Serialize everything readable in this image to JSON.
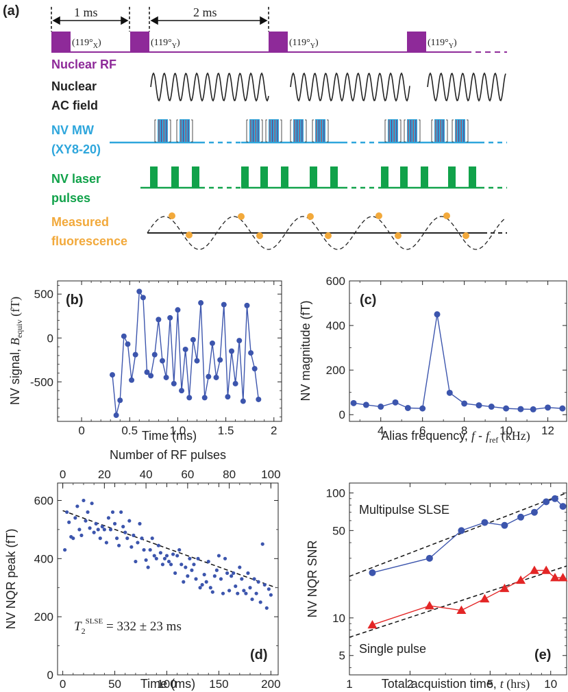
{
  "colors": {
    "rf": "#8e2a99",
    "ac": "#222222",
    "mw": "#2ea6dc",
    "mw_stripe_red": "#d33a3a",
    "laser": "#11a24a",
    "fluor": "#f2a93b",
    "data_blue": "#3c55ad",
    "data_red": "#e32626",
    "fit": "#111111"
  },
  "panel_a": {
    "label": "(a)",
    "dim_1": "1 ms",
    "dim_2": "2 ms",
    "pulse_labels": [
      "(119°",
      "(119°",
      "(119°",
      "(119°"
    ],
    "pulse_subs": [
      "X",
      "Y",
      "Y",
      "Y"
    ],
    "pulse_close": ")",
    "rows": {
      "rf": "Nuclear RF",
      "ac_1": "Nuclear",
      "ac_2": "AC field",
      "mw_1": "NV MW",
      "mw_2": "(XY8-20)",
      "laser_1": "NV laser",
      "laser_2": "pulses",
      "fl_1": "Measured",
      "fl_2": "fluorescence"
    }
  },
  "chart_data": [
    {
      "id": "b",
      "type": "line",
      "panel_label": "(b)",
      "title": "",
      "xlabel": "Time (ms)",
      "ylabel_main": "NV signal, ",
      "ylabel_sym": "B",
      "ylabel_sub": "equiv",
      "ylabel_unit": " (fT)",
      "xlim": [
        -0.25,
        2.08
      ],
      "ylim": [
        -950,
        650
      ],
      "xticks": [
        0,
        0.5,
        1,
        1.5,
        2
      ],
      "xtick_labels": [
        "0",
        "0.5",
        "1.0",
        "1.5",
        "2"
      ],
      "yticks": [
        -500,
        0,
        500
      ],
      "ytick_labels": [
        "-500",
        "0",
        "500"
      ],
      "x": [
        0.32,
        0.36,
        0.4,
        0.44,
        0.48,
        0.52,
        0.56,
        0.6,
        0.64,
        0.68,
        0.72,
        0.76,
        0.8,
        0.84,
        0.88,
        0.92,
        0.96,
        1.0,
        1.04,
        1.08,
        1.12,
        1.16,
        1.2,
        1.24,
        1.28,
        1.32,
        1.36,
        1.4,
        1.44,
        1.48,
        1.52,
        1.56,
        1.6,
        1.64,
        1.68,
        1.72,
        1.76,
        1.8,
        1.84
      ],
      "y": [
        -420,
        -880,
        -710,
        20,
        -70,
        -480,
        -190,
        530,
        460,
        -390,
        -430,
        -190,
        210,
        -260,
        -450,
        230,
        -520,
        320,
        -600,
        -130,
        -680,
        -20,
        -260,
        400,
        -680,
        -440,
        -60,
        -450,
        -250,
        380,
        -670,
        -150,
        -520,
        -30,
        -720,
        370,
        -170,
        -350,
        -700
      ],
      "color": "#3c55ad"
    },
    {
      "id": "c",
      "type": "line",
      "panel_label": "(c)",
      "title": "",
      "xlabel_main": "Alias frequency, ",
      "xlabel_sym_f": "f",
      "xlabel_dash": " - ",
      "xlabel_sym_fref": "f",
      "xlabel_sub": "ref",
      "xlabel_unit": " (kHz)",
      "ylabel": "NV magnitude (fT)",
      "xlim": [
        2.5,
        12.9
      ],
      "ylim": [
        -30,
        600
      ],
      "xticks": [
        4,
        6,
        8,
        10,
        12
      ],
      "xtick_labels": [
        "4",
        "6",
        "8",
        "10",
        "12"
      ],
      "yticks": [
        0,
        200,
        400,
        600
      ],
      "ytick_labels": [
        "0",
        "200",
        "400",
        "600"
      ],
      "x": [
        2.7,
        3.3,
        4.0,
        4.7,
        5.3,
        6.0,
        6.7,
        7.3,
        8.0,
        8.7,
        9.3,
        10.0,
        10.7,
        11.3,
        12.0,
        12.7
      ],
      "y": [
        52,
        44,
        36,
        55,
        30,
        28,
        450,
        98,
        50,
        42,
        36,
        28,
        25,
        24,
        32,
        28
      ],
      "color": "#3c55ad"
    },
    {
      "id": "d",
      "type": "scatter",
      "panel_label": "(d)",
      "title": "",
      "xlabel": "Time (ms)",
      "ylabel": "NV NQR peak (fT)",
      "top_xlabel": "Number of RF pulses",
      "xlim": [
        -5,
        207
      ],
      "ylim": [
        0,
        660
      ],
      "xticks": [
        0,
        50,
        100,
        150,
        200
      ],
      "xtick_labels": [
        "0",
        "50",
        "100",
        "150",
        "200"
      ],
      "top_xticks": [
        0,
        20,
        40,
        60,
        80,
        100
      ],
      "top_xtick_labels": [
        "0",
        "20",
        "40",
        "60",
        "80",
        "100"
      ],
      "yticks": [
        0,
        200,
        400,
        600
      ],
      "ytick_labels": [
        "0",
        "200",
        "400",
        "600"
      ],
      "fit_sym": "T",
      "fit_sub": "2",
      "fit_sup": "SLSE",
      "fit_value": " = 332 ± 23 ms",
      "fit_x": [
        0,
        205
      ],
      "fit_y": [
        565,
        300
      ],
      "x": [
        2,
        4,
        6,
        8,
        10,
        12,
        14,
        16,
        18,
        20,
        22,
        24,
        26,
        28,
        30,
        32,
        34,
        36,
        38,
        40,
        42,
        44,
        46,
        48,
        50,
        52,
        54,
        56,
        58,
        60,
        62,
        64,
        66,
        68,
        70,
        72,
        74,
        76,
        78,
        80,
        82,
        84,
        86,
        88,
        90,
        92,
        94,
        96,
        98,
        100,
        102,
        104,
        106,
        108,
        110,
        112,
        114,
        116,
        118,
        120,
        122,
        124,
        126,
        128,
        130,
        132,
        134,
        136,
        138,
        140,
        142,
        144,
        146,
        148,
        150,
        152,
        154,
        156,
        158,
        160,
        162,
        164,
        166,
        168,
        170,
        172,
        174,
        176,
        178,
        180,
        182,
        184,
        186,
        188,
        190,
        192,
        194,
        196,
        198,
        200
      ],
      "y": [
        430,
        560,
        525,
        475,
        470,
        540,
        580,
        500,
        480,
        600,
        530,
        560,
        505,
        590,
        490,
        520,
        500,
        470,
        510,
        500,
        455,
        540,
        500,
        560,
        520,
        470,
        445,
        560,
        510,
        490,
        470,
        530,
        440,
        480,
        390,
        455,
        520,
        470,
        430,
        395,
        370,
        430,
        470,
        410,
        400,
        445,
        420,
        380,
        400,
        410,
        390,
        380,
        415,
        350,
        410,
        430,
        380,
        320,
        370,
        340,
        400,
        360,
        380,
        330,
        400,
        300,
        310,
        345,
        320,
        390,
        300,
        285,
        340,
        360,
        410,
        330,
        280,
        400,
        350,
        290,
        340,
        350,
        305,
        280,
        370,
        330,
        290,
        280,
        350,
        300,
        260,
        330,
        280,
        320,
        250,
        450,
        310,
        230,
        295,
        275
      ],
      "color": "#3c55ad"
    },
    {
      "id": "e",
      "type": "line",
      "panel_label": "(e)",
      "title": "",
      "xlabel_main": "Total acquistion time, ",
      "xlabel_sym": "t",
      "xlabel_unit": " (hrs)",
      "ylabel": "NV NQR SNR",
      "xscale": "log",
      "yscale": "log",
      "xlim": [
        1,
        12
      ],
      "ylim": [
        3.5,
        120
      ],
      "xticks": [
        1,
        2,
        5,
        10
      ],
      "xtick_labels": [
        "1",
        "2",
        "5",
        "10"
      ],
      "yticks": [
        5,
        10,
        50,
        100
      ],
      "ytick_labels": [
        "5",
        "10",
        "50",
        "100"
      ],
      "series": [
        {
          "name": "Multipulse SLSE",
          "marker": "circle",
          "color": "#3c55ad",
          "x": [
            1.3,
            2.5,
            3.6,
            4.7,
            5.9,
            7.1,
            8.3,
            9.5,
            10.5,
            11.5
          ],
          "y": [
            23,
            30,
            50,
            58,
            55,
            64,
            70,
            85,
            90,
            78
          ],
          "fit_x": [
            1,
            12
          ],
          "fit_y": [
            21.5,
            100
          ]
        },
        {
          "name": "Single pulse",
          "marker": "triangle",
          "color": "#e32626",
          "x": [
            1.3,
            2.5,
            3.6,
            4.7,
            5.9,
            7.1,
            8.3,
            9.5,
            10.5,
            11.5
          ],
          "y": [
            8.8,
            12.5,
            11.5,
            14.2,
            17.2,
            20.0,
            24.0,
            24.0,
            21.0,
            21.0
          ],
          "fit_x": [
            1,
            12
          ],
          "fit_y": [
            7.0,
            26.0
          ]
        }
      ]
    }
  ]
}
